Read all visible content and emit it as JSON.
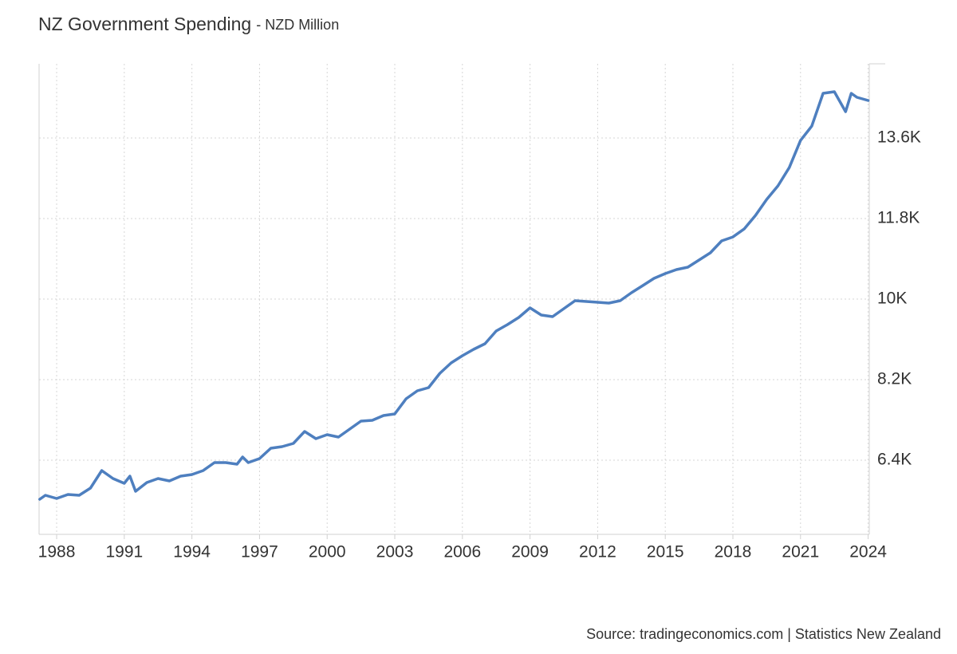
{
  "chart_data": {
    "type": "line",
    "title": "NZ Government Spending",
    "subtitle": "- NZD Million",
    "source": "Source: tradingeconomics.com | Statistics New Zealand",
    "x": [
      1987.25,
      1987.5,
      1988.0,
      1988.5,
      1989.0,
      1989.5,
      1990.0,
      1990.5,
      1991.0,
      1991.25,
      1991.5,
      1992.0,
      1992.5,
      1993.0,
      1993.5,
      1994.0,
      1994.5,
      1995.0,
      1995.5,
      1996.0,
      1996.25,
      1996.5,
      1997.0,
      1997.5,
      1998.0,
      1998.5,
      1999.0,
      1999.5,
      2000.0,
      2000.5,
      2001.0,
      2001.5,
      2002.0,
      2002.5,
      2003.0,
      2003.5,
      2004.0,
      2004.5,
      2005.0,
      2005.5,
      2006.0,
      2006.5,
      2007.0,
      2007.5,
      2008.0,
      2008.5,
      2009.0,
      2009.5,
      2010.0,
      2010.5,
      2011.0,
      2011.5,
      2012.0,
      2012.5,
      2013.0,
      2013.5,
      2014.0,
      2014.5,
      2015.0,
      2015.5,
      2016.0,
      2016.5,
      2017.0,
      2017.5,
      2018.0,
      2018.5,
      2019.0,
      2019.5,
      2020.0,
      2020.5,
      2021.0,
      2021.5,
      2022.0,
      2022.5,
      2023.0,
      2023.25,
      2023.5,
      2024.0
    ],
    "series": [
      {
        "name": "NZ Government Spending",
        "color": "#4e7fbf",
        "values": [
          5527,
          5616,
          5545,
          5634,
          5616,
          5776,
          6168,
          5990,
          5883,
          6044,
          5705,
          5901,
          5990,
          5937,
          6044,
          6079,
          6168,
          6347,
          6347,
          6311,
          6471,
          6347,
          6436,
          6667,
          6703,
          6774,
          7041,
          6881,
          6970,
          6917,
          7095,
          7273,
          7291,
          7398,
          7433,
          7772,
          7950,
          8022,
          8342,
          8574,
          8734,
          8877,
          9002,
          9287,
          9430,
          9590,
          9804,
          9643,
          9608,
          9786,
          9964,
          9946,
          9929,
          9911,
          9964,
          10142,
          10302,
          10463,
          10570,
          10659,
          10712,
          10873,
          11033,
          11300,
          11389,
          11567,
          11870,
          12227,
          12530,
          12939,
          13545,
          13866,
          14597,
          14633,
          14187,
          14597,
          14508,
          14437
        ]
      }
    ],
    "xlim": [
      1987.22,
      2024.05
    ],
    "xticks": [
      1988,
      1991,
      1994,
      1997,
      2000,
      2003,
      2006,
      2009,
      2012,
      2015,
      2018,
      2021,
      2024
    ],
    "ylim": [
      4743,
      15257
    ],
    "yticks": [
      {
        "value": 6400,
        "label": "6.4K"
      },
      {
        "value": 8200,
        "label": "8.2K"
      },
      {
        "value": 10000,
        "label": "10K"
      },
      {
        "value": 11800,
        "label": "11.8K"
      },
      {
        "value": 13600,
        "label": "13.6K"
      }
    ],
    "grid": true
  }
}
